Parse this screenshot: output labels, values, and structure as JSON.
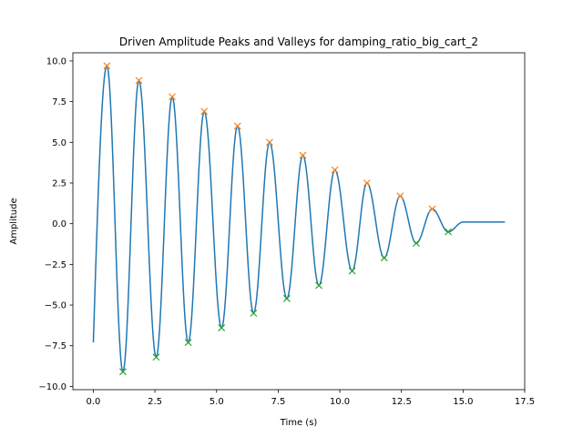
{
  "chart_data": {
    "type": "line",
    "title": "Driven Amplitude Peaks and Valleys for damping_ratio_big_cart_2",
    "xlabel": "Time (s)",
    "ylabel": "Amplitude",
    "xlim": [
      -0.83,
      17.5
    ],
    "ylim": [
      -10.2,
      10.5
    ],
    "xticks": [
      0.0,
      2.5,
      5.0,
      7.5,
      10.0,
      12.5,
      15.0,
      17.5
    ],
    "xtick_labels": [
      "0.0",
      "2.5",
      "5.0",
      "7.5",
      "10.0",
      "12.5",
      "15.0",
      "17.5"
    ],
    "yticks": [
      -10.0,
      -7.5,
      -5.0,
      -2.5,
      0.0,
      2.5,
      5.0,
      7.5,
      10.0
    ],
    "ytick_labels": [
      "−10.0",
      "−7.5",
      "−5.0",
      "−2.5",
      "0.0",
      "2.5",
      "5.0",
      "7.5",
      "10.0"
    ],
    "grid": false,
    "colors": {
      "signal": "#1f77b4",
      "peaks": "#ff7f0e",
      "valleys": "#2ca02c"
    },
    "signal": {
      "start": [
        0.0,
        -7.3
      ],
      "end": [
        16.7,
        0.1
      ],
      "settle_time": 15.0,
      "settle_value": 0.1
    },
    "peaks": [
      [
        0.55,
        9.7
      ],
      [
        1.85,
        8.8
      ],
      [
        3.2,
        7.8
      ],
      [
        4.5,
        6.9
      ],
      [
        5.85,
        6.0
      ],
      [
        7.15,
        5.0
      ],
      [
        8.5,
        4.2
      ],
      [
        9.8,
        3.3
      ],
      [
        11.1,
        2.5
      ],
      [
        12.45,
        1.7
      ],
      [
        13.75,
        0.9
      ]
    ],
    "valleys": [
      [
        1.2,
        -9.1
      ],
      [
        2.55,
        -8.2
      ],
      [
        3.85,
        -7.3
      ],
      [
        5.2,
        -6.4
      ],
      [
        6.5,
        -5.5
      ],
      [
        7.85,
        -4.6
      ],
      [
        9.15,
        -3.8
      ],
      [
        10.5,
        -2.9
      ],
      [
        11.8,
        -2.1
      ],
      [
        13.1,
        -1.2
      ],
      [
        14.4,
        -0.5
      ]
    ]
  }
}
